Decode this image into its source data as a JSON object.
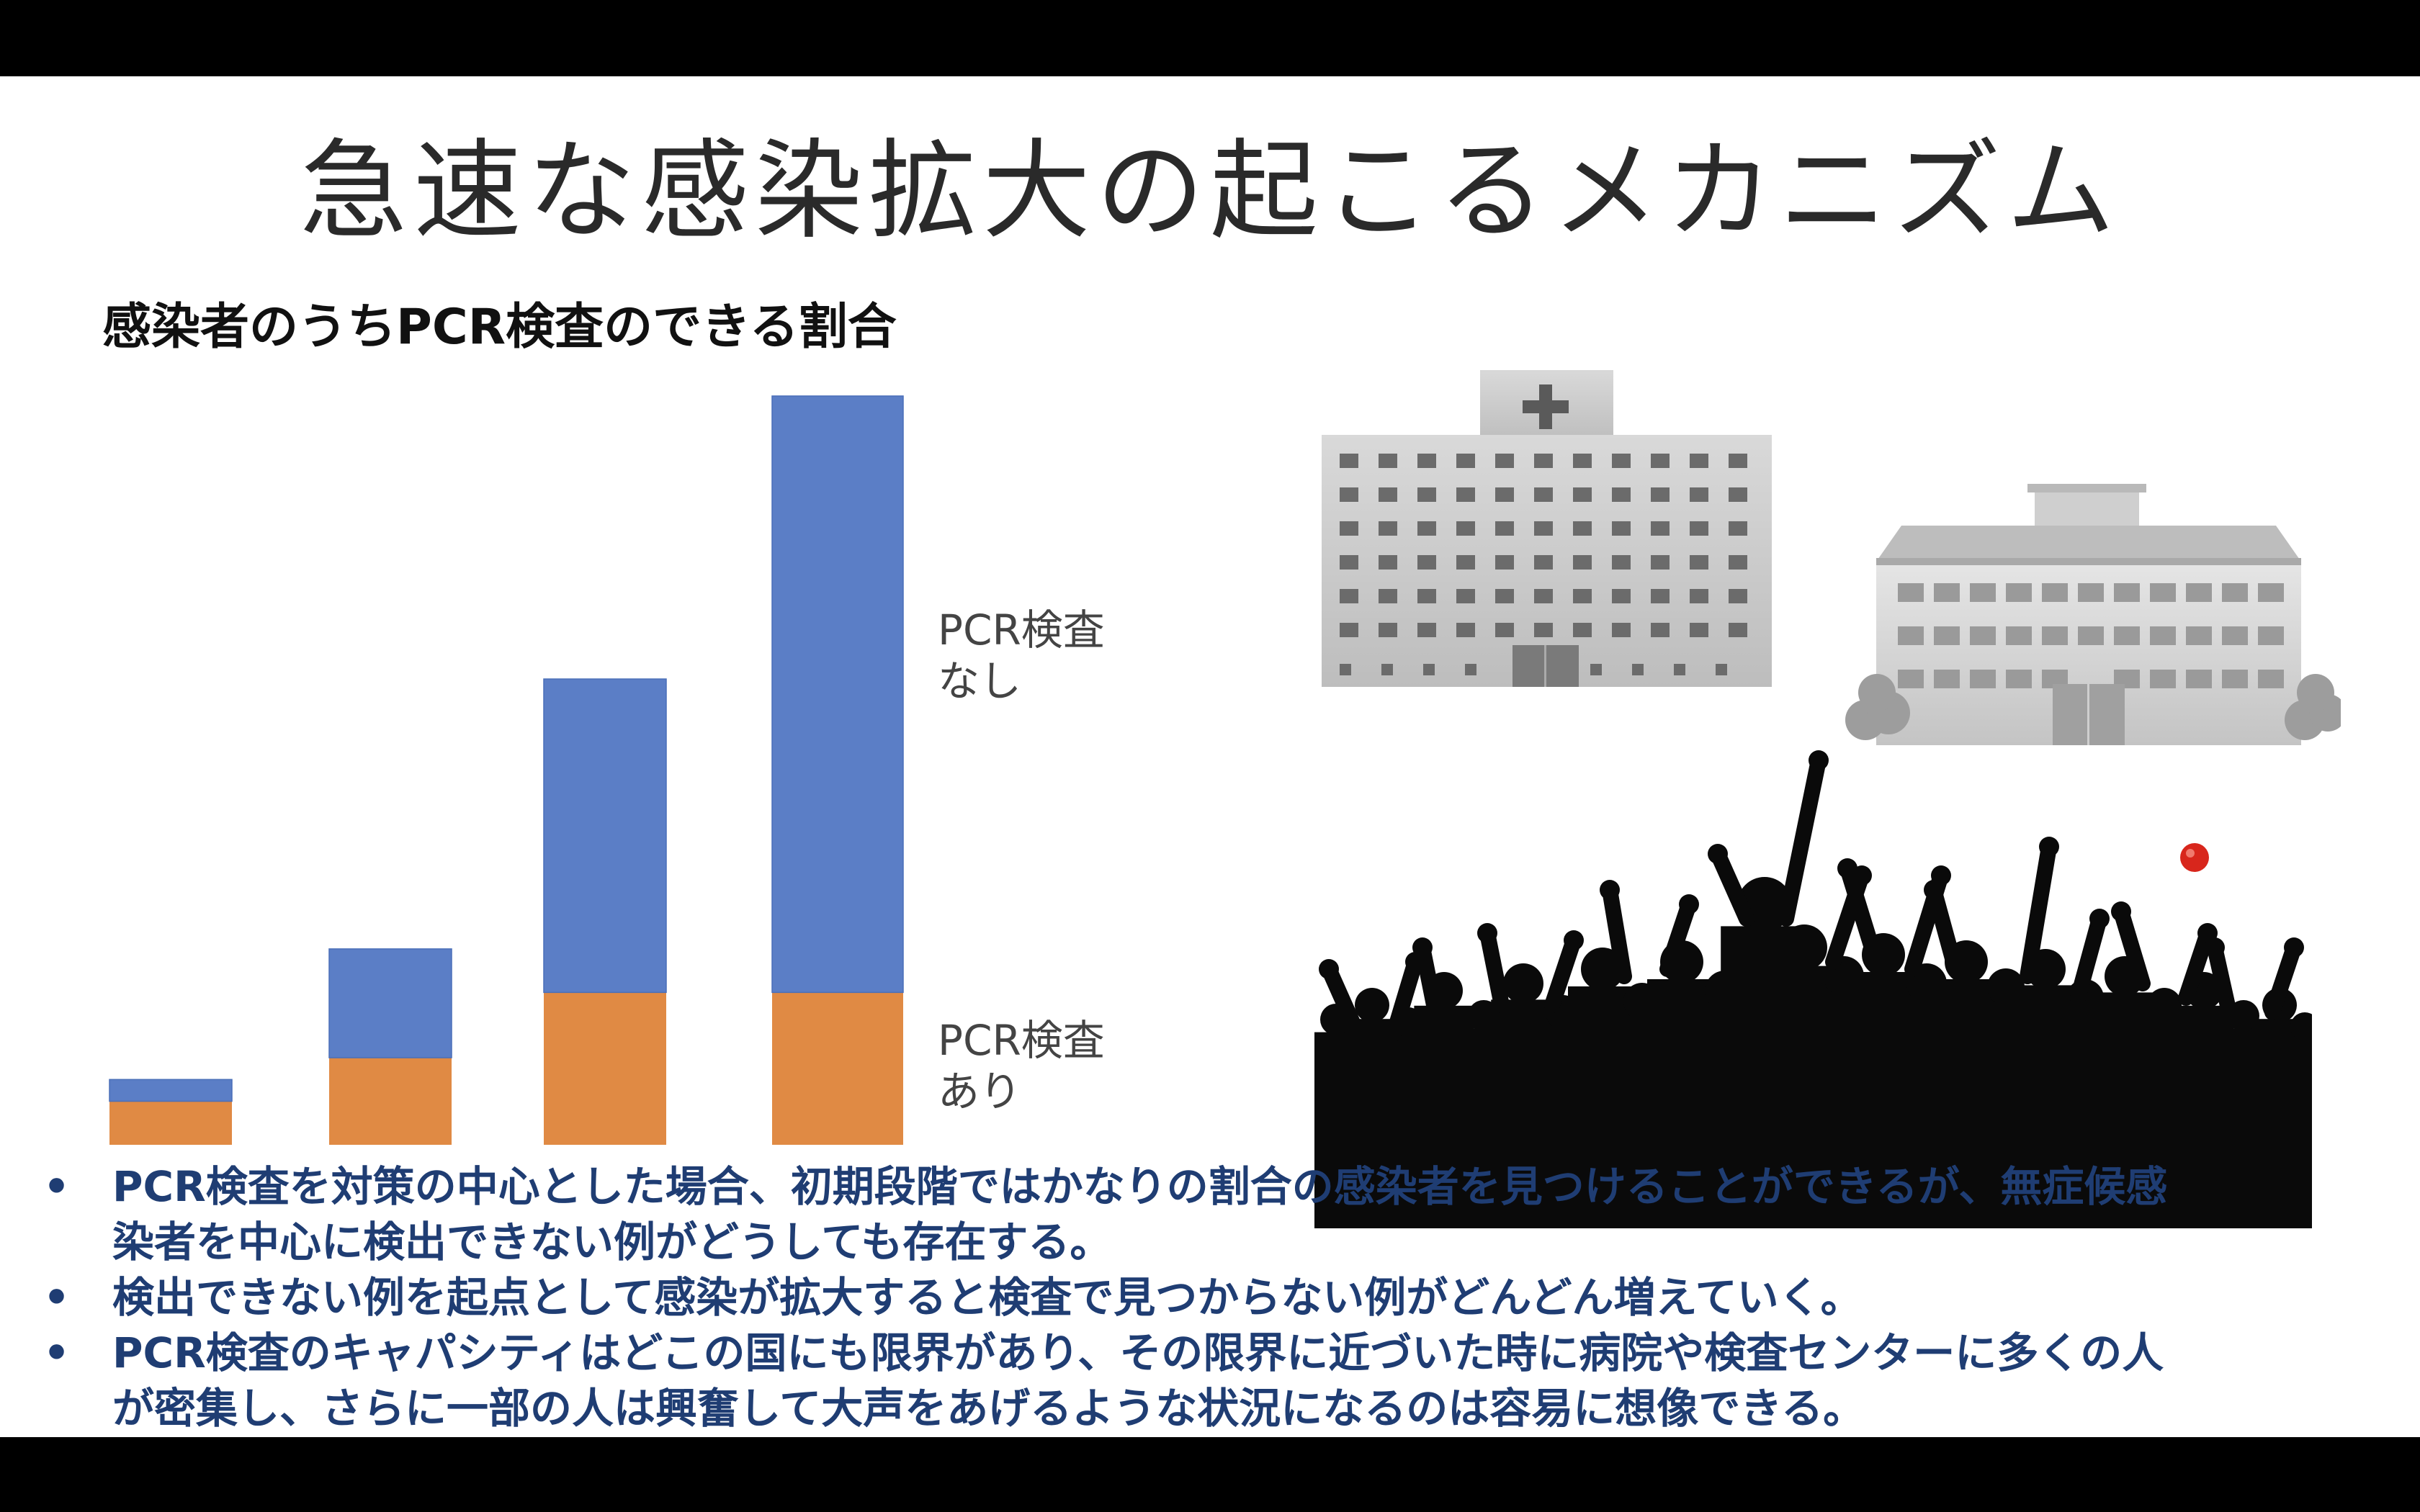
{
  "slide": {
    "title": "急速な感染拡大の起こるメカニズム",
    "subtitle": "感染者のうちPCR検査のできる割合"
  },
  "chart_data": {
    "type": "bar",
    "stacked": true,
    "title": "",
    "categories": [
      "",
      "",
      "",
      ""
    ],
    "series": [
      {
        "name": "PCR検査あり",
        "color": "#e08a44",
        "values": [
          1,
          2,
          3.5,
          3.5
        ]
      },
      {
        "name": "PCR検査なし",
        "color": "#5b7ec6",
        "values": [
          0.5,
          2.5,
          7.2,
          13.7
        ]
      }
    ],
    "legend_labels": {
      "none": [
        "PCR検査",
        "なし"
      ],
      "yes": [
        "PCR検査",
        "あり"
      ]
    },
    "ylim": [
      0,
      17.2
    ]
  },
  "images": {
    "hospital_icon": "hospital-building",
    "school_icon": "school-building",
    "crowd_icon": "crowd-silhouette"
  },
  "bullets": [
    {
      "marker": "•",
      "lines": [
        "PCR検査を対策の中心とした場合、初期段階ではかなりの割合の感染者を見つけることができるが、無症候感",
        "染者を中心に検出できない例がどうしても存在する。"
      ]
    },
    {
      "marker": "•",
      "lines": [
        "検出できない例を起点として感染が拡大すると検査で見つからない例がどんどん増えていく。"
      ]
    },
    {
      "marker": "•",
      "lines": [
        "PCR検査のキャパシティはどこの国にも限界があり、その限界に近づいた時に病院や検査センターに多くの人",
        "が密集し、さらに一部の人は興奮して大声をあげるような状況になるのは容易に想像できる。"
      ]
    }
  ]
}
